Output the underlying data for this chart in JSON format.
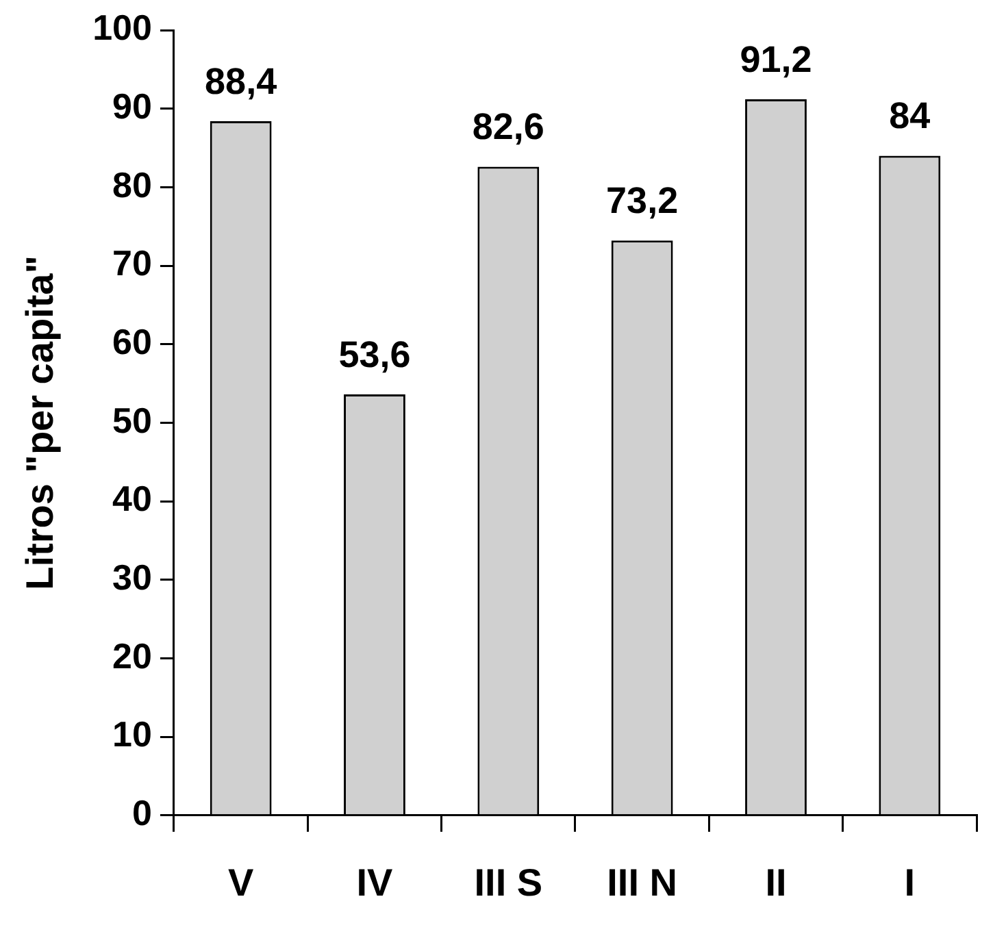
{
  "chart_data": {
    "type": "bar",
    "ylabel": "Litros \"per capita\"",
    "categories": [
      "V",
      "IV",
      "III S",
      "III N",
      "II",
      "I"
    ],
    "values": [
      88.4,
      53.6,
      82.6,
      73.2,
      91.2,
      84
    ],
    "value_labels": [
      "88,4",
      "53,6",
      "82,6",
      "73,2",
      "91,2",
      "84"
    ],
    "color": "#d0d0d0",
    "ylim": [
      0,
      100
    ],
    "yticks": [
      0,
      10,
      20,
      30,
      40,
      50,
      60,
      70,
      80,
      90,
      100
    ]
  }
}
